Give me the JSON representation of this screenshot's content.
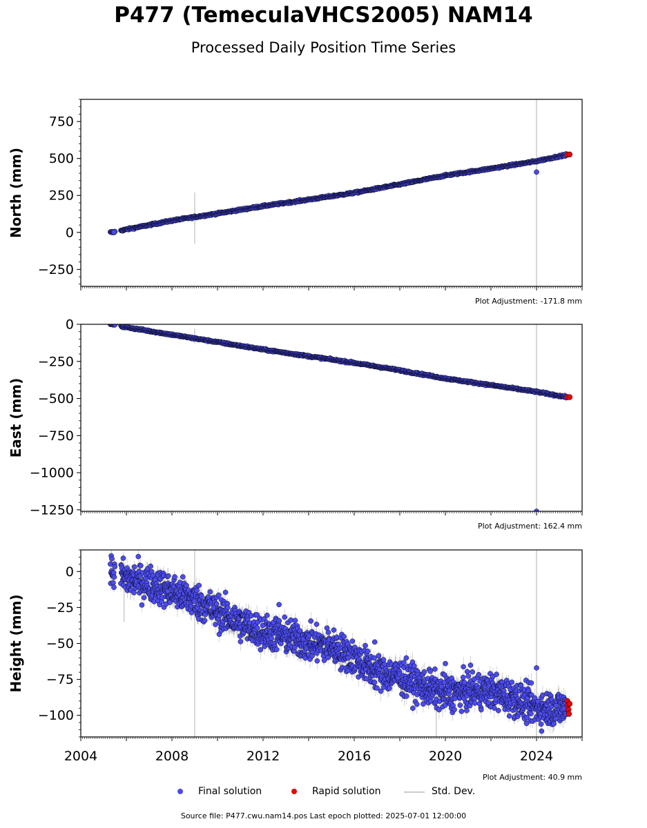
{
  "title": "P477 (TemeculaVHCS2005) NAM14",
  "subtitle": "Processed Daily Position Time Series",
  "legend": {
    "final": "Final solution",
    "rapid": "Rapid solution",
    "stddev": "Std. Dev."
  },
  "source_text": "Source file: P477.cwu.nam14.pos  Last epoch plotted: 2025-07-01 12:00:00",
  "colors": {
    "final": "#4b4bef",
    "rapid": "#e0080a",
    "stddev": "#cccccc",
    "marker_edge": "#000000"
  },
  "chart_data": [
    {
      "type": "scatter",
      "panel": "north",
      "ylabel": "North (mm)",
      "adjustment_text": "Plot Adjustment: -171.8 mm",
      "ylim": [
        -365,
        900
      ],
      "yticks": [
        750,
        500,
        250,
        0,
        -250
      ],
      "ytick_labels": [
        "750",
        "500",
        "250",
        "0",
        "−250"
      ],
      "xlim": [
        2004.0,
        2026.0
      ],
      "final_trend": [
        [
          2005.3,
          0
        ],
        [
          2005.45,
          2
        ],
        [
          2005.8,
          14
        ],
        [
          2008.0,
          80
        ],
        [
          2010.0,
          128
        ],
        [
          2012.0,
          178
        ],
        [
          2014.0,
          222
        ],
        [
          2016.0,
          268
        ],
        [
          2018.0,
          325
        ],
        [
          2020.0,
          385
        ],
        [
          2022.0,
          432
        ],
        [
          2024.0,
          482
        ],
        [
          2025.3,
          525
        ]
      ],
      "final_outliers": [
        [
          2024.0,
          408
        ],
        [
          2005.45,
          2
        ]
      ],
      "rapid_points": [
        [
          2025.35,
          526
        ],
        [
          2025.45,
          527
        ]
      ],
      "stddev_spikes": [
        [
          2009.0,
          -75,
          270
        ],
        [
          2024.0,
          -365,
          900
        ]
      ],
      "noise_mm": 3
    },
    {
      "type": "scatter",
      "panel": "east",
      "ylabel": "East (mm)",
      "adjustment_text": "Plot Adjustment: 162.4 mm",
      "ylim": [
        -1260,
        0
      ],
      "yticks": [
        0,
        -250,
        -500,
        -750,
        -1000,
        -1250
      ],
      "ytick_labels": [
        "0",
        "−250",
        "−500",
        "−750",
        "−1000",
        "−1250"
      ],
      "xlim": [
        2004.0,
        2026.0
      ],
      "final_trend": [
        [
          2005.3,
          0
        ],
        [
          2005.5,
          -2
        ],
        [
          2005.8,
          -15
        ],
        [
          2008.0,
          -70
        ],
        [
          2010.0,
          -120
        ],
        [
          2012.0,
          -170
        ],
        [
          2014.0,
          -215
        ],
        [
          2016.0,
          -260
        ],
        [
          2018.0,
          -310
        ],
        [
          2020.0,
          -365
        ],
        [
          2022.0,
          -410
        ],
        [
          2024.0,
          -455
        ],
        [
          2025.3,
          -490
        ]
      ],
      "final_outliers": [
        [
          2024.0,
          -1260
        ],
        [
          2005.5,
          -2
        ]
      ],
      "rapid_points": [
        [
          2025.35,
          -490
        ],
        [
          2025.45,
          -491
        ]
      ],
      "stddev_spikes": [
        [
          2009.0,
          -30,
          -130
        ],
        [
          2024.0,
          0,
          -1260
        ]
      ],
      "noise_mm": 3
    },
    {
      "type": "scatter",
      "panel": "height",
      "ylabel": "Height (mm)",
      "adjustment_text": "Plot Adjustment: 40.9 mm",
      "ylim": [
        -115,
        15
      ],
      "yticks": [
        0,
        -25,
        -50,
        -75,
        -100
      ],
      "ytick_labels": [
        "0",
        "−25",
        "−50",
        "−75",
        "−100"
      ],
      "xlim": [
        2004.0,
        2026.0
      ],
      "xticks": [
        2004,
        2008,
        2012,
        2016,
        2020,
        2024
      ],
      "xtick_labels": [
        "2004",
        "2008",
        "2012",
        "2016",
        "2020",
        "2024"
      ],
      "final_trend": [
        [
          2005.3,
          0
        ],
        [
          2006.0,
          -5
        ],
        [
          2007.0,
          -8
        ],
        [
          2008.0,
          -14
        ],
        [
          2009.0,
          -20
        ],
        [
          2010.0,
          -28
        ],
        [
          2011.0,
          -36
        ],
        [
          2012.0,
          -42
        ],
        [
          2013.0,
          -45
        ],
        [
          2014.0,
          -50
        ],
        [
          2015.0,
          -52
        ],
        [
          2016.0,
          -60
        ],
        [
          2017.0,
          -70
        ],
        [
          2018.0,
          -73
        ],
        [
          2019.0,
          -80
        ],
        [
          2020.0,
          -85
        ],
        [
          2021.0,
          -83
        ],
        [
          2022.0,
          -83
        ],
        [
          2023.0,
          -88
        ],
        [
          2024.0,
          -95
        ],
        [
          2025.3,
          -95
        ]
      ],
      "final_outliers": [
        [
          2020.0,
          -64
        ],
        [
          2024.0,
          -67
        ],
        [
          2016.9,
          -49
        ],
        [
          2012.7,
          -23
        ]
      ],
      "rapid_points": [
        [
          2025.35,
          -90
        ],
        [
          2025.38,
          -93
        ],
        [
          2025.4,
          -96
        ],
        [
          2025.42,
          -99
        ],
        [
          2025.45,
          -92
        ]
      ],
      "stddev_spikes": [
        [
          2009.0,
          -115,
          15
        ],
        [
          2024.0,
          -115,
          15
        ],
        [
          2019.6,
          -115,
          -90
        ],
        [
          2005.9,
          -35,
          -10
        ]
      ],
      "noise_mm": 6
    }
  ]
}
